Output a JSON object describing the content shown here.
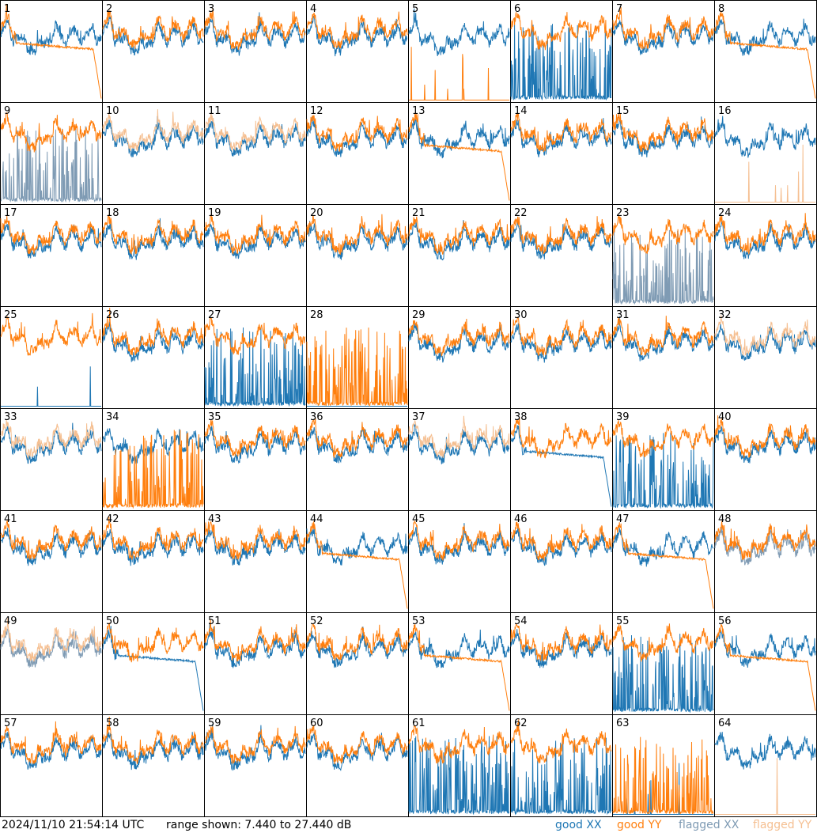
{
  "chart_data": {
    "type": "line",
    "panels": [
      1,
      2,
      3,
      4,
      5,
      6,
      7,
      8,
      9,
      10,
      11,
      12,
      13,
      14,
      15,
      16,
      17,
      18,
      19,
      20,
      21,
      22,
      23,
      24,
      25,
      26,
      27,
      28,
      29,
      30,
      31,
      32,
      33,
      34,
      35,
      36,
      37,
      38,
      39,
      40,
      41,
      42,
      43,
      44,
      45,
      46,
      47,
      48,
      49,
      50,
      51,
      52,
      53,
      54,
      55,
      56,
      57,
      58,
      59,
      60,
      61,
      62,
      63,
      64
    ],
    "ylim_db": [
      7.44,
      27.44
    ],
    "grid_layout": "8x8",
    "series_legend": [
      {
        "name": "good XX",
        "color": "#1f77b4"
      },
      {
        "name": "good YY",
        "color": "#ff7f0e"
      },
      {
        "name": "flagged XX",
        "color": "#7f9bb4"
      },
      {
        "name": "flagged YY",
        "color": "#f5bf91"
      }
    ],
    "flags": {
      "xx_flagged": [
        9,
        23,
        48,
        49
      ],
      "yy_flagged": [
        10,
        11,
        16,
        32,
        33,
        37,
        49,
        64
      ],
      "xx_flat": [
        25,
        28,
        63
      ],
      "yy_flat": [
        5,
        16,
        64
      ],
      "xx_spiky": [
        6,
        9,
        23,
        27,
        39,
        55,
        61,
        62
      ],
      "yy_spiky": [
        28,
        34,
        63
      ],
      "xx_rolloff": [
        6,
        27,
        38,
        50,
        61
      ],
      "yy_rolloff": [
        1,
        8,
        13,
        44,
        47,
        53,
        56
      ]
    }
  },
  "footer": {
    "timestamp": "2024/11/10 21:54:14 UTC",
    "range": "range shown: 7.440 to 27.440 dB",
    "legend": {
      "good_xx": "good XX",
      "good_yy": "good YY",
      "flagged_xx": "flagged XX",
      "flagged_yy": "flagged YY"
    }
  }
}
